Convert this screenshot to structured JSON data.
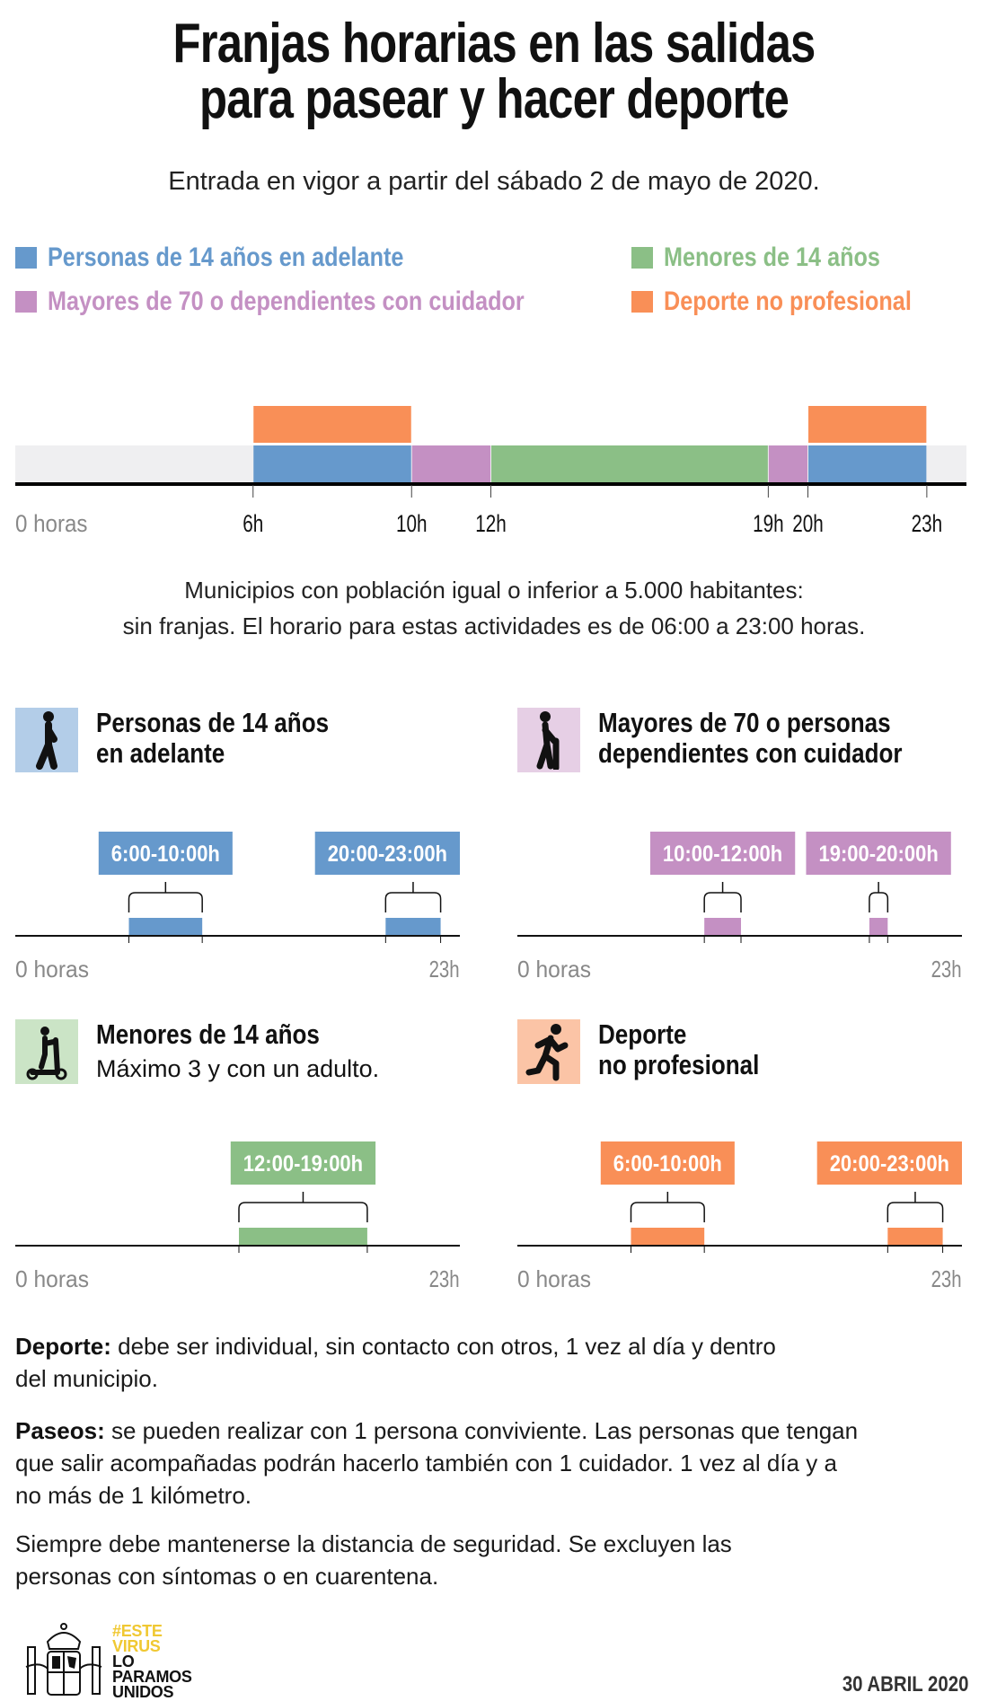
{
  "title": {
    "lines": [
      "Franjas horarias en las salidas",
      "para pasear y hacer deporte"
    ]
  },
  "subtitle": "Entrada en vigor a partir del sábado 2 de mayo de 2020.",
  "colors": {
    "blue": "#6699cc",
    "purple": "#c490c3",
    "green": "#8bbf86",
    "orange": "#f98f57",
    "band": "#efeff1",
    "blue_light": "#b3cde8",
    "purple_light": "#e6cfe5",
    "green_light": "#cbe4c6",
    "orange_light": "#fbc4a6"
  },
  "legend": [
    {
      "label": "Personas de 14 años en adelante",
      "color": "#6699cc"
    },
    {
      "label": "Menores de 14 años",
      "color": "#8bbf86"
    },
    {
      "label": "Mayores de 70 o dependientes con cuidador",
      "color": "#c490c3"
    },
    {
      "label": "Deporte no profesional",
      "color": "#f98f57"
    }
  ],
  "note": {
    "lines": [
      "Municipios con población igual o inferior a 5.000 habitantes:",
      "sin franjas. El horario para estas actividades es de 06:00 a 23:00 horas."
    ]
  },
  "panels": [
    {
      "title": [
        "Personas de 14 años",
        "en adelante"
      ],
      "icon": "walking-person-icon",
      "subtitle": ""
    },
    {
      "title": [
        "Mayores de 70 o personas",
        "dependientes con cuidador"
      ],
      "icon": "elderly-person-cane-icon",
      "subtitle": ""
    },
    {
      "title": [
        "Menores de 14 años"
      ],
      "icon": "child-scooter-icon",
      "subtitle": "Máximo 3 y con un adulto."
    },
    {
      "title": [
        "Deporte",
        "no profesional"
      ],
      "icon": "running-person-icon",
      "subtitle": ""
    }
  ],
  "chart_data": [
    {
      "type": "bar",
      "orientation": "horizontal-timeline",
      "xlim": [
        0,
        24
      ],
      "ticks": [
        {
          "value": 0,
          "label": "0 horas"
        },
        {
          "value": 6,
          "label": "6h"
        },
        {
          "value": 10,
          "label": "10h"
        },
        {
          "value": 12,
          "label": "12h"
        },
        {
          "value": 19,
          "label": "19h"
        },
        {
          "value": 20,
          "label": "20h"
        },
        {
          "value": 23,
          "label": "23h"
        }
      ],
      "segments": [
        {
          "series": "Personas de 14 años en adelante",
          "start": 6,
          "end": 10,
          "color": "#6699cc",
          "row": "base"
        },
        {
          "series": "Mayores de 70 o dependientes con cuidador",
          "start": 10,
          "end": 12,
          "color": "#c490c3",
          "row": "base"
        },
        {
          "series": "Menores de 14 años",
          "start": 12,
          "end": 19,
          "color": "#8bbf86",
          "row": "base"
        },
        {
          "series": "Mayores de 70 o dependientes con cuidador",
          "start": 19,
          "end": 20,
          "color": "#c490c3",
          "row": "base"
        },
        {
          "series": "Personas de 14 años en adelante",
          "start": 20,
          "end": 23,
          "color": "#6699cc",
          "row": "base"
        },
        {
          "series": "Deporte no profesional",
          "start": 6,
          "end": 10,
          "color": "#f98f57",
          "row": "top"
        },
        {
          "series": "Deporte no profesional",
          "start": 20,
          "end": 23,
          "color": "#f98f57",
          "row": "top"
        }
      ]
    },
    {
      "type": "bar",
      "xlim": [
        0,
        24
      ],
      "color": "#6699cc",
      "axis_labels": [
        "0 horas",
        "23h"
      ],
      "segments": [
        {
          "start": 6,
          "end": 10,
          "label": "6:00-10:00h"
        },
        {
          "start": 20,
          "end": 23,
          "label": "20:00-23:00h"
        }
      ]
    },
    {
      "type": "bar",
      "xlim": [
        0,
        24
      ],
      "color": "#c490c3",
      "axis_labels": [
        "0 horas",
        "23h"
      ],
      "segments": [
        {
          "start": 10,
          "end": 12,
          "label": "10:00-12:00h"
        },
        {
          "start": 19,
          "end": 20,
          "label": "19:00-20:00h"
        }
      ]
    },
    {
      "type": "bar",
      "xlim": [
        0,
        24
      ],
      "color": "#8bbf86",
      "axis_labels": [
        "0 horas",
        "23h"
      ],
      "segments": [
        {
          "start": 12,
          "end": 19,
          "label": "12:00-19:00h"
        }
      ]
    },
    {
      "type": "bar",
      "xlim": [
        0,
        24
      ],
      "color": "#f98f57",
      "axis_labels": [
        "0 horas",
        "23h"
      ],
      "segments": [
        {
          "start": 6,
          "end": 10,
          "label": "6:00-10:00h"
        },
        {
          "start": 20,
          "end": 23,
          "label": "20:00-23:00h"
        }
      ]
    }
  ],
  "body": {
    "deporte": {
      "label": "Deporte:",
      "lines": [
        " debe ser individual, sin contacto con otros, 1 vez al día y dentro",
        "del municipio."
      ]
    },
    "paseos": {
      "label": "Paseos:",
      "lines": [
        " se pueden realizar con 1 persona conviviente. Las personas que tengan",
        "que salir acompañadas podrán hacerlo también con 1 cuidador. 1 vez al día y a",
        "no más de 1 kilómetro."
      ]
    },
    "siempre": {
      "lines": [
        "Siempre debe mantenerse la distancia de seguridad. Se excluyen las",
        "personas con síntomas o en cuarentena."
      ]
    }
  },
  "footer": {
    "logo": "spanish-coat-of-arms",
    "slogan": {
      "yellow": [
        "#ESTE",
        "VIRUS"
      ],
      "black": [
        "LO",
        "PARAMOS",
        "UNIDOS"
      ],
      "yellow_color": "#f0c832"
    },
    "date": "30 ABRIL 2020"
  }
}
